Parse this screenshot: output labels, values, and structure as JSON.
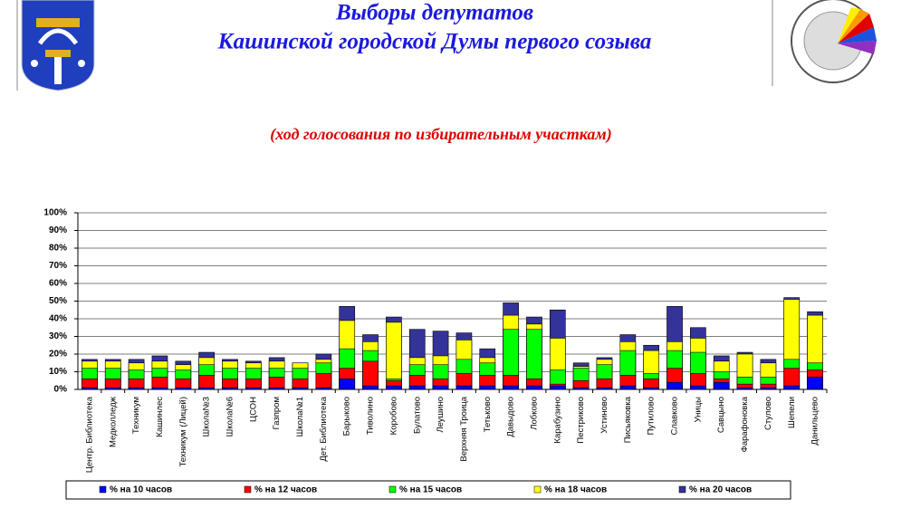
{
  "chart_data": {
    "type": "bar",
    "title": "Выборы депутатов",
    "title_line2": "Кашинской городской Думы первого созыва",
    "subtitle": "(ход голосования по избирательным участкам)",
    "categories": [
      "Центр. Библиотека",
      "Медколледж",
      "Техникум",
      "Кашинлес",
      "Техникум (Лицей)",
      "Школа№3",
      "Школа№6",
      "ЦСОН",
      "Газпром",
      "Школа№1",
      "Дет. Библиотека",
      "Барыково",
      "Тиволино",
      "Коробово",
      "Булатово",
      "Леушино",
      "Верхняя Троица",
      "Тетьково",
      "Давыдово",
      "Лобково",
      "Карабузино",
      "Пестриково",
      "Устиново",
      "Письяковка",
      "Путилово",
      "Славково",
      "Уницы",
      "Савцыно",
      "Фарафоновка",
      "Стулово",
      "Шепели",
      "Данильцево"
    ],
    "series": [
      {
        "name": "% на 10 часов",
        "color": "#0000ff",
        "values": [
          1,
          1,
          1,
          1,
          1,
          1,
          1,
          1,
          1,
          1,
          1,
          6,
          2,
          2,
          2,
          2,
          2,
          2,
          2,
          2,
          2,
          1,
          1,
          2,
          1,
          4,
          2,
          4,
          1,
          1,
          2,
          7
        ]
      },
      {
        "name": "% на 12 часов",
        "color": "#ff0000",
        "values": [
          6,
          6,
          6,
          7,
          6,
          8,
          6,
          6,
          7,
          6,
          9,
          12,
          16,
          5,
          8,
          6,
          9,
          8,
          8,
          6,
          3,
          5,
          6,
          8,
          6,
          12,
          9,
          6,
          3,
          3,
          12,
          11
        ]
      },
      {
        "name": "% на 15 часов",
        "color": "#00ff00",
        "values": [
          12,
          12,
          11,
          12,
          11,
          14,
          12,
          12,
          12,
          12,
          15,
          23,
          22,
          6,
          14,
          14,
          17,
          15,
          34,
          34,
          11,
          12,
          14,
          22,
          9,
          22,
          21,
          10,
          7,
          7,
          17,
          15
        ]
      },
      {
        "name": "% на 18 часов",
        "color": "#ffff00",
        "values": [
          16,
          16,
          15,
          16,
          14,
          18,
          16,
          15,
          16,
          15,
          17,
          39,
          27,
          38,
          18,
          19,
          28,
          18,
          42,
          37,
          29,
          13,
          17,
          27,
          22,
          27,
          29,
          16,
          20,
          15,
          51,
          42
        ]
      },
      {
        "name": "% на 20 часов",
        "color": "#333399",
        "values": [
          17,
          17,
          17,
          19,
          16,
          21,
          17,
          16,
          18,
          15,
          20,
          47,
          31,
          41,
          34,
          33,
          32,
          23,
          49,
          41,
          45,
          15,
          18,
          31,
          25,
          47,
          35,
          19,
          21,
          17,
          52,
          44
        ]
      }
    ],
    "ylim": [
      0,
      100
    ],
    "yticks": [
      {
        "value": 0,
        "label": "0%"
      },
      {
        "value": 10,
        "label": "10%"
      },
      {
        "value": 20,
        "label": "20%"
      },
      {
        "value": 30,
        "label": "30%"
      },
      {
        "value": 40,
        "label": "40%"
      },
      {
        "value": 50,
        "label": "50%"
      },
      {
        "value": 60,
        "label": "60%"
      },
      {
        "value": 70,
        "label": "70%"
      },
      {
        "value": 80,
        "label": "80%"
      },
      {
        "value": 90,
        "label": "90%"
      },
      {
        "value": 100,
        "label": "100%"
      }
    ],
    "grid": true
  }
}
